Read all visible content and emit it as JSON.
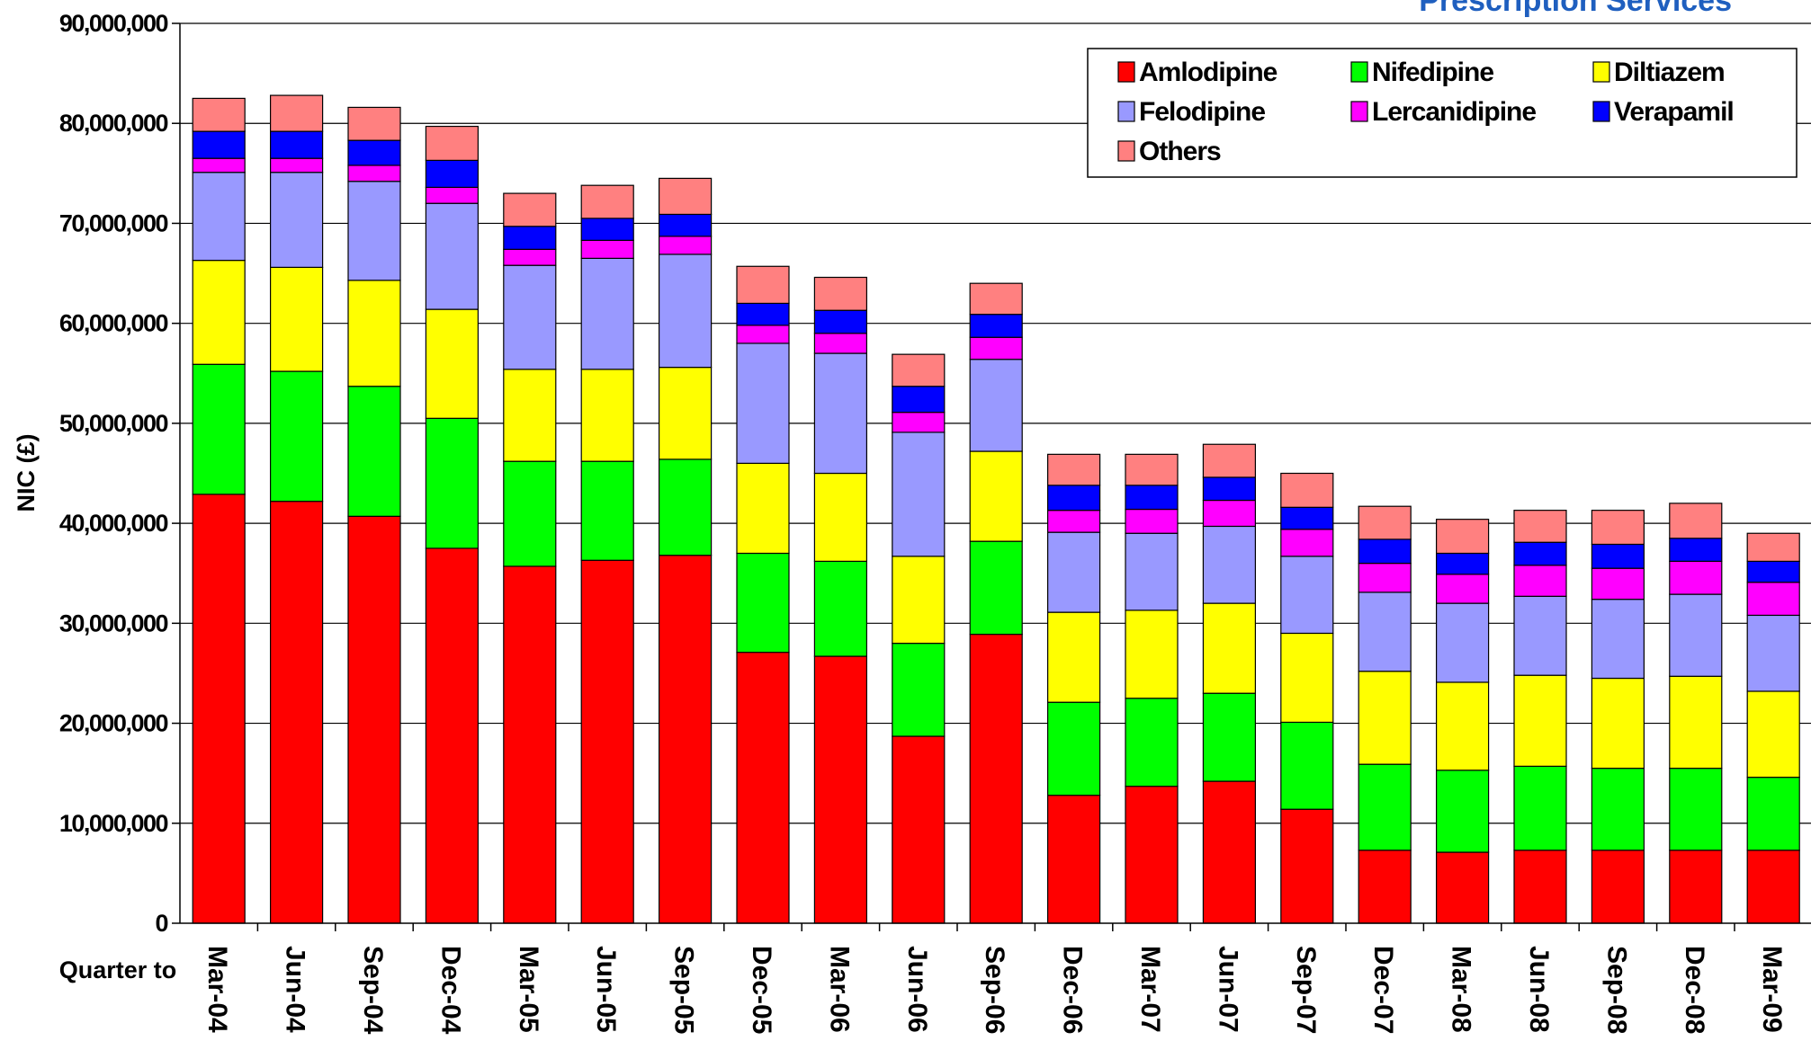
{
  "brand_text": "Prescription Services",
  "colors": {
    "Amlodipine": "#ff0000",
    "Nifedipine": "#00ff00",
    "Diltiazem": "#ffff00",
    "Felodipine": "#9999ff",
    "Lercanidipine": "#ff00ff",
    "Verapamil": "#0000ff",
    "Others": "#ff8080",
    "brand": "#1f5fbf"
  },
  "chart_data": {
    "type": "bar",
    "stacked": true,
    "title": "",
    "xlabel": "Quarter to",
    "ylabel": "NIC (£)",
    "ylim": [
      0,
      90000000
    ],
    "yticks": [
      0,
      10000000,
      20000000,
      30000000,
      40000000,
      50000000,
      60000000,
      70000000,
      80000000,
      90000000
    ],
    "ytick_labels": [
      "0",
      "10,000,000",
      "20,000,000",
      "30,000,000",
      "40,000,000",
      "50,000,000",
      "60,000,000",
      "70,000,000",
      "80,000,000",
      "90,000,000"
    ],
    "grid": "horizontal",
    "legend_position": "top-right",
    "categories": [
      "Mar-04",
      "Jun-04",
      "Sep-04",
      "Dec-04",
      "Mar-05",
      "Jun-05",
      "Sep-05",
      "Dec-05",
      "Mar-06",
      "Jun-06",
      "Sep-06",
      "Dec-06",
      "Mar-07",
      "Jun-07",
      "Sep-07",
      "Dec-07",
      "Mar-08",
      "Jun-08",
      "Sep-08",
      "Dec-08",
      "Mar-09"
    ],
    "series": [
      {
        "name": "Amlodipine",
        "values": [
          42900000,
          42200000,
          40700000,
          37500000,
          35700000,
          36300000,
          36800000,
          27100000,
          26700000,
          18700000,
          28900000,
          12800000,
          13700000,
          14200000,
          11400000,
          7300000,
          7100000,
          7300000,
          7300000,
          7300000,
          7300000
        ]
      },
      {
        "name": "Nifedipine",
        "values": [
          13000000,
          13000000,
          13000000,
          13000000,
          10500000,
          9900000,
          9600000,
          9900000,
          9500000,
          9300000,
          9300000,
          9300000,
          8800000,
          8800000,
          8700000,
          8600000,
          8200000,
          8400000,
          8200000,
          8200000,
          7300000
        ]
      },
      {
        "name": "Diltiazem",
        "values": [
          10400000,
          10400000,
          10600000,
          10900000,
          9200000,
          9200000,
          9200000,
          9000000,
          8800000,
          8700000,
          9000000,
          9000000,
          8800000,
          9000000,
          8900000,
          9300000,
          8800000,
          9100000,
          9000000,
          9200000,
          8600000
        ]
      },
      {
        "name": "Felodipine",
        "values": [
          8800000,
          9500000,
          9900000,
          10600000,
          10400000,
          11100000,
          11300000,
          12000000,
          12000000,
          12400000,
          9200000,
          8000000,
          7700000,
          7700000,
          7700000,
          7900000,
          7900000,
          7900000,
          7900000,
          8200000,
          7600000
        ]
      },
      {
        "name": "Lercanidipine",
        "values": [
          1400000,
          1400000,
          1600000,
          1600000,
          1600000,
          1800000,
          1800000,
          1800000,
          2000000,
          2000000,
          2200000,
          2200000,
          2400000,
          2600000,
          2700000,
          2900000,
          2900000,
          3100000,
          3100000,
          3300000,
          3300000
        ]
      },
      {
        "name": "Verapamil",
        "values": [
          2700000,
          2700000,
          2500000,
          2700000,
          2300000,
          2200000,
          2200000,
          2200000,
          2300000,
          2600000,
          2300000,
          2500000,
          2400000,
          2300000,
          2200000,
          2400000,
          2100000,
          2300000,
          2400000,
          2300000,
          2100000
        ]
      },
      {
        "name": "Others",
        "values": [
          3300000,
          3600000,
          3300000,
          3400000,
          3300000,
          3300000,
          3600000,
          3700000,
          3300000,
          3200000,
          3100000,
          3100000,
          3100000,
          3300000,
          3400000,
          3300000,
          3400000,
          3200000,
          3400000,
          3500000,
          2800000
        ]
      }
    ]
  }
}
